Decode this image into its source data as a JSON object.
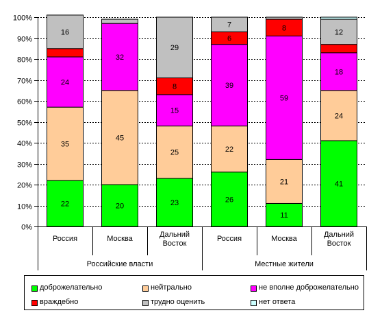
{
  "chart_data": {
    "type": "stacked-bar-100",
    "ylim": [
      0,
      100
    ],
    "y_ticks": [
      "0%",
      "10%",
      "20%",
      "30%",
      "40%",
      "50%",
      "60%",
      "70%",
      "80%",
      "90%",
      "100%"
    ],
    "categories": [
      "Россия",
      "Москва",
      "Дальний Восток",
      "Россия",
      "Москва",
      "Дальний Восток"
    ],
    "category_lines": [
      [
        "Россия"
      ],
      [
        "Москва"
      ],
      [
        "Дальний",
        "Восток"
      ],
      [
        "Россия"
      ],
      [
        "Москва"
      ],
      [
        "Дальний",
        "Восток"
      ]
    ],
    "groups": [
      {
        "label": "Российские власти",
        "span": [
          0,
          2
        ]
      },
      {
        "label": "Местные жители",
        "span": [
          3,
          5
        ]
      }
    ],
    "grid": true,
    "legend_position": "bottom",
    "series": [
      {
        "name": "доброжелательно",
        "color": "#00ff00",
        "values": [
          22,
          20,
          23,
          26,
          11,
          41
        ],
        "labels": [
          "22",
          "20",
          "23",
          "26",
          "11",
          "41"
        ]
      },
      {
        "name": "нейтрально",
        "color": "#ffcc99",
        "values": [
          35,
          45,
          25,
          22,
          21,
          24
        ],
        "labels": [
          "35",
          "45",
          "25",
          "22",
          "21",
          "24"
        ]
      },
      {
        "name": "не вполне доброжелательно",
        "color": "#ff00ff",
        "values": [
          24,
          32,
          15,
          39,
          59,
          18
        ],
        "labels": [
          "24",
          "32",
          "15",
          "39",
          "59",
          "18"
        ]
      },
      {
        "name": "враждебно",
        "color": "#ff0000",
        "values": [
          4,
          0,
          8,
          6,
          8,
          4
        ],
        "labels": [
          "",
          "",
          "8",
          "6",
          "8",
          ""
        ]
      },
      {
        "name": "трудно оценить",
        "color": "#c0c0c0",
        "values": [
          16,
          2,
          29,
          7,
          1,
          12
        ],
        "labels": [
          "16",
          "",
          "29",
          "7",
          "",
          "12"
        ]
      },
      {
        "name": "нет ответа",
        "color": "#ccffff",
        "values": [
          0,
          0,
          0,
          0,
          0,
          1
        ],
        "labels": [
          "",
          "",
          "",
          "",
          "",
          ""
        ]
      }
    ]
  }
}
